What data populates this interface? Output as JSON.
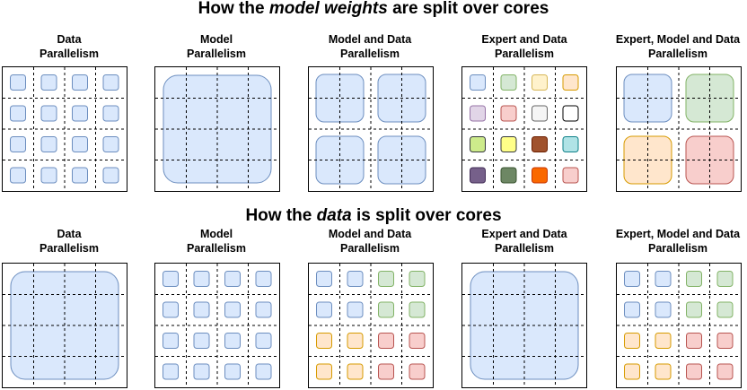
{
  "top_heading": {
    "prefix": "How the ",
    "emph": "model weights",
    "suffix": " are split over cores"
  },
  "bottom_heading": {
    "prefix": "How the ",
    "emph": "data",
    "suffix": " is split over cores"
  },
  "colors": {
    "blue": {
      "fill": "#dae8fc",
      "stroke": "#6c8ebf"
    },
    "green": {
      "fill": "#d5e8d4",
      "stroke": "#82b366"
    },
    "orange": {
      "fill": "#ffe6cc",
      "stroke": "#d79b00"
    },
    "red": {
      "fill": "#f8cecc",
      "stroke": "#b85450"
    },
    "yellow_light": {
      "fill": "#fff2cc",
      "stroke": "#d6b656"
    },
    "purple_light": {
      "fill": "#e1d5e7",
      "stroke": "#9673a6"
    },
    "grey": {
      "fill": "#f5f5f5",
      "stroke": "#666666"
    },
    "white": {
      "fill": "#ffffff",
      "stroke": "#000000"
    },
    "lime": {
      "fill": "#cdeb8b",
      "stroke": "#36393d"
    },
    "yellow": {
      "fill": "#ffff88",
      "stroke": "#36393d"
    },
    "brown": {
      "fill": "#a0522d",
      "stroke": "#6d1f00"
    },
    "cyan": {
      "fill": "#b0e3e6",
      "stroke": "#0e8088"
    },
    "purple_dark": {
      "fill": "#76608a",
      "stroke": "#432d57"
    },
    "green_dark": {
      "fill": "#6d8764",
      "stroke": "#3a5431"
    },
    "orange_bright": {
      "fill": "#fa6800",
      "stroke": "#c73500"
    },
    "pink": {
      "fill": "#f8cecc",
      "stroke": "#b85450"
    }
  },
  "top_row": [
    {
      "label_line1": "Data",
      "label_line2": "Parallelism",
      "pattern": "small",
      "colors": [
        "blue",
        "blue",
        "blue",
        "blue",
        "blue",
        "blue",
        "blue",
        "blue",
        "blue",
        "blue",
        "blue",
        "blue",
        "blue",
        "blue",
        "blue",
        "blue"
      ]
    },
    {
      "label_line1": "Model",
      "label_line2": "Parallelism",
      "pattern": "one",
      "colors": [
        "blue"
      ]
    },
    {
      "label_line1": "Model and Data",
      "label_line2": "Parallelism",
      "pattern": "four",
      "colors": [
        "blue",
        "blue",
        "blue",
        "blue"
      ]
    },
    {
      "label_line1": "Expert and Data",
      "label_line2": "Parallelism",
      "pattern": "small",
      "colors": [
        "blue",
        "green",
        "yellow_light",
        "orange",
        "purple_light",
        "red",
        "grey",
        "white",
        "lime",
        "yellow",
        "brown",
        "cyan",
        "purple_dark",
        "green_dark",
        "orange_bright",
        "pink"
      ]
    },
    {
      "label_line1": "Expert, Model and Data",
      "label_line2": "Parallelism",
      "pattern": "four",
      "colors": [
        "blue",
        "green",
        "orange",
        "red"
      ]
    }
  ],
  "bottom_row": [
    {
      "label_line1": "Data",
      "label_line2": "Parallelism",
      "pattern": "one",
      "colors": [
        "blue"
      ]
    },
    {
      "label_line1": "Model",
      "label_line2": "Parallelism",
      "pattern": "small",
      "colors": [
        "blue",
        "blue",
        "blue",
        "blue",
        "blue",
        "blue",
        "blue",
        "blue",
        "blue",
        "blue",
        "blue",
        "blue",
        "blue",
        "blue",
        "blue",
        "blue"
      ]
    },
    {
      "label_line1": "Model and Data",
      "label_line2": "Parallelism",
      "pattern": "small",
      "colors": [
        "blue",
        "blue",
        "green",
        "green",
        "blue",
        "blue",
        "green",
        "green",
        "orange",
        "orange",
        "red",
        "red",
        "orange",
        "orange",
        "red",
        "red"
      ]
    },
    {
      "label_line1": "Expert and Data",
      "label_line2": "Parallelism",
      "pattern": "one",
      "colors": [
        "blue"
      ]
    },
    {
      "label_line1": "Expert, Model and Data",
      "label_line2": "Parallelism",
      "pattern": "small",
      "colors": [
        "blue",
        "blue",
        "green",
        "green",
        "blue",
        "blue",
        "green",
        "green",
        "orange",
        "orange",
        "red",
        "red",
        "orange",
        "orange",
        "red",
        "red"
      ]
    }
  ]
}
